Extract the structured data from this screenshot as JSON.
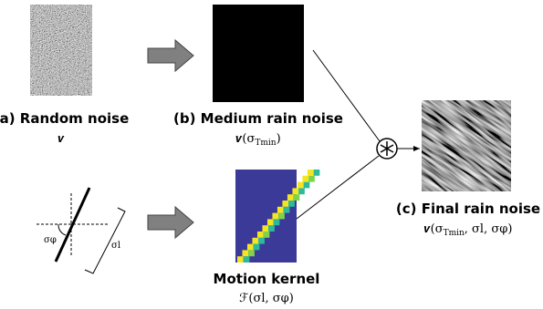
{
  "panels": {
    "random": {
      "label": "(a) Random noise",
      "math": "𝒗"
    },
    "medium": {
      "label": "(b) Medium rain noise",
      "math": "𝒗(σ",
      "sub": "Tmin",
      "tail": ")"
    },
    "final": {
      "label": "(c) Final rain noise",
      "math": "𝒗(σ",
      "sub": "Tmin",
      "tail": ", σl, σφ)"
    },
    "kernel": {
      "label": "Motion kernel",
      "math": "ℱ(σl, σφ)"
    }
  },
  "kernel_diagram": {
    "angle_label": "σφ",
    "length_label": "σl"
  }
}
